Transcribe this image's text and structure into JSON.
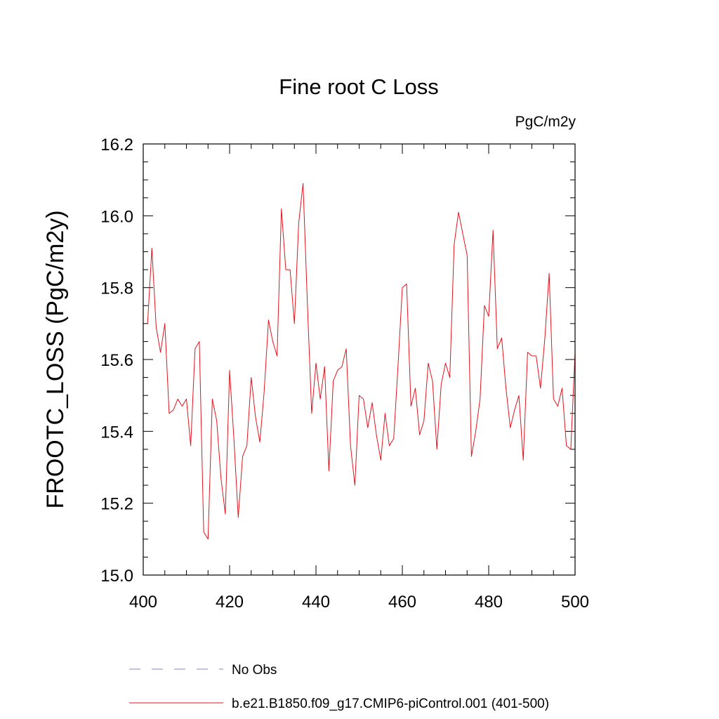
{
  "chart_data": {
    "type": "line",
    "title": "Fine root C Loss",
    "units": "PgC/m2y",
    "ylabel": "FROOTC_LOSS  (PgC/m2y)",
    "xlabel": "",
    "xlim": [
      400,
      500
    ],
    "ylim": [
      15.0,
      16.2
    ],
    "xticks": [
      "400",
      "420",
      "440",
      "460",
      "480",
      "500"
    ],
    "yticks": [
      "15.0",
      "15.2",
      "15.4",
      "15.6",
      "15.8",
      "16.0",
      "16.2"
    ],
    "legend": [
      {
        "label": "No Obs",
        "style": "dashed",
        "color": "#8a7fd6"
      },
      {
        "label": "b.e21.B1850.f09_g17.CMIP6-piControl.001 (401-500)",
        "style": "solid",
        "color": "#e0141e"
      }
    ],
    "series": [
      {
        "name": "b.e21.B1850.f09_g17.CMIP6-piControl.001 (401-500)",
        "color": "#e0141e",
        "x": [
          401,
          402,
          403,
          404,
          405,
          406,
          407,
          408,
          409,
          410,
          411,
          412,
          413,
          414,
          415,
          416,
          417,
          418,
          419,
          420,
          421,
          422,
          423,
          424,
          425,
          426,
          427,
          428,
          429,
          430,
          431,
          432,
          433,
          434,
          435,
          436,
          437,
          438,
          439,
          440,
          441,
          442,
          443,
          444,
          445,
          446,
          447,
          448,
          449,
          450,
          451,
          452,
          453,
          454,
          455,
          456,
          457,
          458,
          459,
          460,
          461,
          462,
          463,
          464,
          465,
          466,
          467,
          468,
          469,
          470,
          471,
          472,
          473,
          474,
          475,
          476,
          477,
          478,
          479,
          480,
          481,
          482,
          483,
          484,
          485,
          486,
          487,
          488,
          489,
          490,
          491,
          492,
          493,
          494,
          495,
          496,
          497,
          498,
          499,
          500
        ],
        "values": [
          15.7,
          15.91,
          15.69,
          15.62,
          15.7,
          15.45,
          15.46,
          15.49,
          15.47,
          15.49,
          15.36,
          15.63,
          15.65,
          15.12,
          15.1,
          15.49,
          15.43,
          15.27,
          15.17,
          15.57,
          15.38,
          15.16,
          15.33,
          15.36,
          15.55,
          15.44,
          15.37,
          15.51,
          15.71,
          15.65,
          15.61,
          16.02,
          15.85,
          15.85,
          15.7,
          15.98,
          16.09,
          15.76,
          15.45,
          15.59,
          15.49,
          15.58,
          15.29,
          15.54,
          15.57,
          15.58,
          15.63,
          15.36,
          15.25,
          15.5,
          15.49,
          15.41,
          15.48,
          15.39,
          15.32,
          15.45,
          15.36,
          15.38,
          15.58,
          15.8,
          15.81,
          15.47,
          15.52,
          15.39,
          15.43,
          15.59,
          15.54,
          15.35,
          15.53,
          15.59,
          15.55,
          15.92,
          16.01,
          15.95,
          15.89,
          15.33,
          15.4,
          15.49,
          15.75,
          15.72,
          15.96,
          15.63,
          15.66,
          15.52,
          15.41,
          15.46,
          15.5,
          15.32,
          15.62,
          15.61,
          15.61,
          15.52,
          15.66,
          15.84,
          15.49,
          15.47,
          15.52,
          15.36,
          15.35,
          15.62
        ]
      }
    ]
  }
}
